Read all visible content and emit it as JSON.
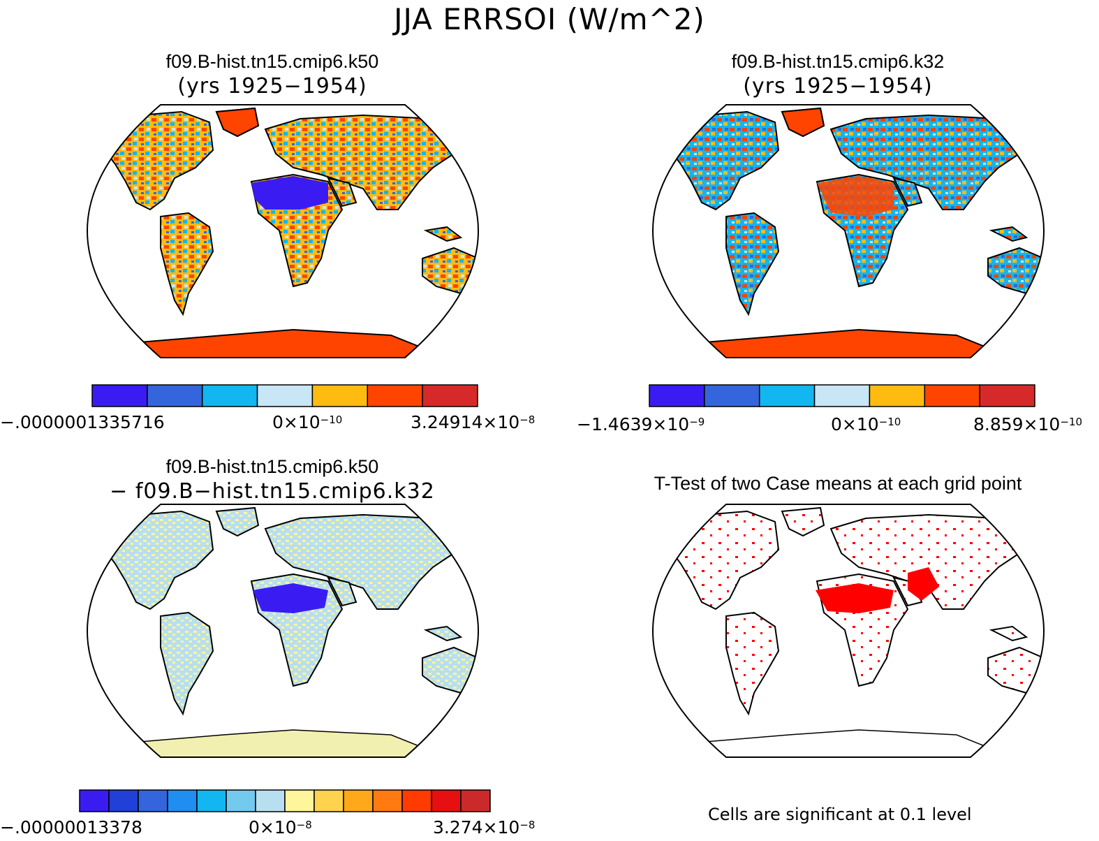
{
  "main_title": "JJA ERRSOI (W/m^2)",
  "panels": {
    "top_left": {
      "title": "f09.B-hist.tn15.cmip6.k50",
      "subtitle": "(yrs 1925−1954)"
    },
    "top_right": {
      "title": "f09.B-hist.tn15.cmip6.k32",
      "subtitle": "(yrs 1925−1954)"
    },
    "bottom_left": {
      "title": "f09.B-hist.tn15.cmip6.k50",
      "subtitle": "− f09.B−hist.tn15.cmip6.k32"
    },
    "bottom_right": {
      "title": "T-Test of two Case means at each grid point",
      "footer": "Cells are significant at 0.1 level"
    }
  },
  "colorbars": {
    "cb1": {
      "colors": [
        "#3a1cf2",
        "#3465dc",
        "#12b6f0",
        "#c8e6f5",
        "#ffbb10",
        "#ff4400",
        "#d62a2a"
      ],
      "left_label": "−.0000001335716",
      "mid_label_mantissa": "0×10",
      "mid_label_exp": "−10",
      "right_label_mantissa": "3.24914×10",
      "right_label_exp": "−8"
    },
    "cb2": {
      "colors": [
        "#3a1cf2",
        "#3465dc",
        "#12b6f0",
        "#c8e6f5",
        "#ffbb10",
        "#ff4400",
        "#d62a2a"
      ],
      "left_label_mantissa": "−1.4639×10",
      "left_label_exp": "−9",
      "mid_label_mantissa": "0×10",
      "mid_label_exp": "−10",
      "right_label_mantissa": "8.859×10",
      "right_label_exp": "−10"
    },
    "cb3": {
      "colors": [
        "#3a1cf2",
        "#2040d8",
        "#3465dc",
        "#1f8ef0",
        "#12b6f0",
        "#73c9ee",
        "#b8dff0",
        "#fff59a",
        "#ffd34d",
        "#ffa91a",
        "#ff7a10",
        "#ff3b00",
        "#e61010",
        "#cc2a2a"
      ],
      "left_label": "−.00000013378",
      "mid_label_mantissa": "0×10",
      "mid_label_exp": "−8",
      "right_label_mantissa": "3.274×10",
      "right_label_exp": "−8"
    }
  },
  "map_fill_colors": {
    "panel1": "#f3a040",
    "panel2": "#9ccdea",
    "panel3": "#cfe4ec",
    "panel4": "#ffffff",
    "antarctica_top": "#ff4400",
    "antarctica_diff": "#f2f0b0",
    "sahara_low": "#3a1cf2",
    "significant": "#ff0000",
    "map_border": "#000000"
  }
}
